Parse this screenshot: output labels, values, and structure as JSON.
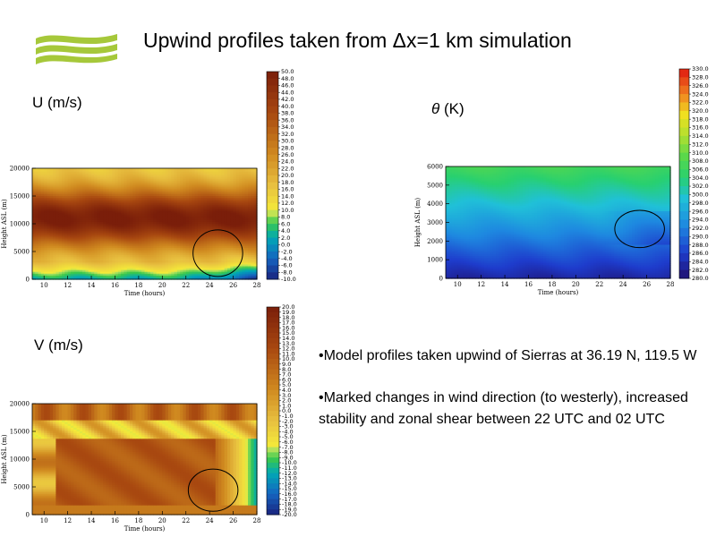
{
  "title": "Upwind profiles taken from Δx=1 km simulation",
  "colors": {
    "logo_green": "#a6c83a",
    "ellipse": "#000000"
  },
  "panels": {
    "u": {
      "label": "U (m/s)"
    },
    "theta": {
      "label_symbol": "θ",
      "label_unit": "(K)"
    },
    "v": {
      "label": "V (m/s)"
    }
  },
  "bullets": [
    "•Model profiles taken upwind of Sierras at 36.19 N, 119.5 W",
    "•Marked changes in wind direction (to westerly), increased stability and zonal shear between 22 UTC and 02 UTC"
  ],
  "chart_data": [
    {
      "type": "heatmap",
      "name": "U",
      "xlabel": "Time (hours)",
      "ylabel": "Height ASL (m)",
      "x_ticks": [
        10,
        12,
        14,
        16,
        18,
        20,
        22,
        24,
        26,
        28
      ],
      "y_ticks": [
        0,
        5000,
        10000,
        15000,
        20000
      ],
      "xlim": [
        9,
        28
      ],
      "ylim": [
        0,
        20000
      ],
      "colorbar_ticks": [
        "50.0",
        "48.0",
        "46.0",
        "44.0",
        "42.0",
        "40.0",
        "38.0",
        "36.0",
        "34.0",
        "32.0",
        "30.0",
        "28.0",
        "26.0",
        "24.0",
        "22.0",
        "20.0",
        "18.0",
        "16.0",
        "14.0",
        "12.0",
        "10.0",
        "8.0",
        "6.0",
        "4.0",
        "2.0",
        "0.0",
        "-2.0",
        "-4.0",
        "-6.0",
        "-8.0",
        "-10.0"
      ],
      "colorbar_range": [
        -10,
        50
      ]
    },
    {
      "type": "heatmap",
      "name": "theta",
      "xlabel": "Time (hours)",
      "ylabel": "Height ASL (m)",
      "x_ticks": [
        10,
        12,
        14,
        16,
        18,
        20,
        22,
        24,
        26,
        28
      ],
      "y_ticks": [
        0,
        1000,
        2000,
        3000,
        4000,
        5000,
        6000
      ],
      "xlim": [
        9,
        28
      ],
      "ylim": [
        0,
        6000
      ],
      "colorbar_ticks": [
        "330.0",
        "328.0",
        "326.0",
        "324.0",
        "322.0",
        "320.0",
        "318.0",
        "316.0",
        "314.0",
        "312.0",
        "310.0",
        "308.0",
        "306.0",
        "304.0",
        "302.0",
        "300.0",
        "298.0",
        "296.0",
        "294.0",
        "292.0",
        "290.0",
        "288.0",
        "286.0",
        "284.0",
        "282.0",
        "280.0"
      ],
      "colorbar_range": [
        280,
        330
      ]
    },
    {
      "type": "heatmap",
      "name": "V",
      "xlabel": "Time (hours)",
      "ylabel": "Height ASL (m)",
      "x_ticks": [
        10,
        12,
        14,
        16,
        18,
        20,
        22,
        24,
        26,
        28
      ],
      "y_ticks": [
        0,
        5000,
        10000,
        15000,
        20000
      ],
      "xlim": [
        9,
        28
      ],
      "ylim": [
        0,
        20000
      ],
      "colorbar_ticks": [
        "20.0",
        "19.0",
        "18.0",
        "17.0",
        "16.0",
        "15.0",
        "14.0",
        "13.0",
        "12.0",
        "11.0",
        "10.0",
        "9.0",
        "8.0",
        "7.0",
        "6.0",
        "5.0",
        "4.0",
        "3.0",
        "2.0",
        "1.0",
        "0.0",
        "-1.0",
        "-2.0",
        "-3.0",
        "-4.0",
        "-5.0",
        "-6.0",
        "-7.0",
        "-8.0",
        "-9.0",
        "-10.0",
        "-11.0",
        "-12.0",
        "-13.0",
        "-14.0",
        "-15.0",
        "-16.0",
        "-17.0",
        "-18.0",
        "-19.0",
        "-20.0"
      ],
      "colorbar_range": [
        -20,
        20
      ]
    }
  ]
}
